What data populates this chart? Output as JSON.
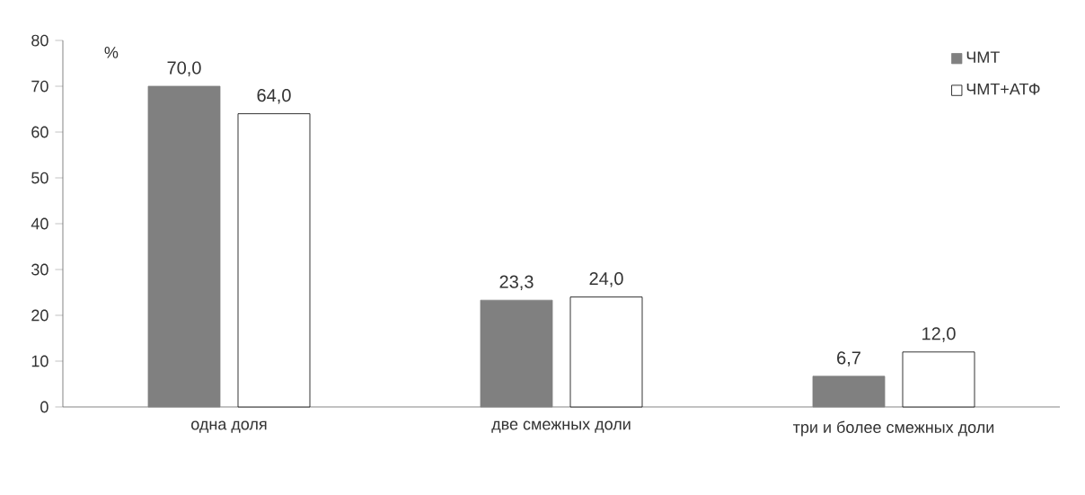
{
  "chart_data": {
    "type": "bar",
    "ylabel": "%",
    "categories": [
      "одна доля",
      "две смежных доли",
      "три и более смежных доли"
    ],
    "series": [
      {
        "name": "ЧМТ",
        "color": "#808080",
        "values": [
          70.0,
          23.3,
          6.7
        ],
        "value_labels": [
          "70,0",
          "23,3",
          "6,7"
        ]
      },
      {
        "name": "ЧМТ+АТФ",
        "color": "#ffffff",
        "values": [
          64.0,
          24.0,
          12.0
        ],
        "value_labels": [
          "64,0",
          "24,0",
          "12,0"
        ]
      }
    ],
    "ylim": [
      0,
      80
    ],
    "yticks": [
      0,
      10,
      20,
      30,
      40,
      50,
      60,
      70,
      80
    ],
    "legend": "top right"
  }
}
